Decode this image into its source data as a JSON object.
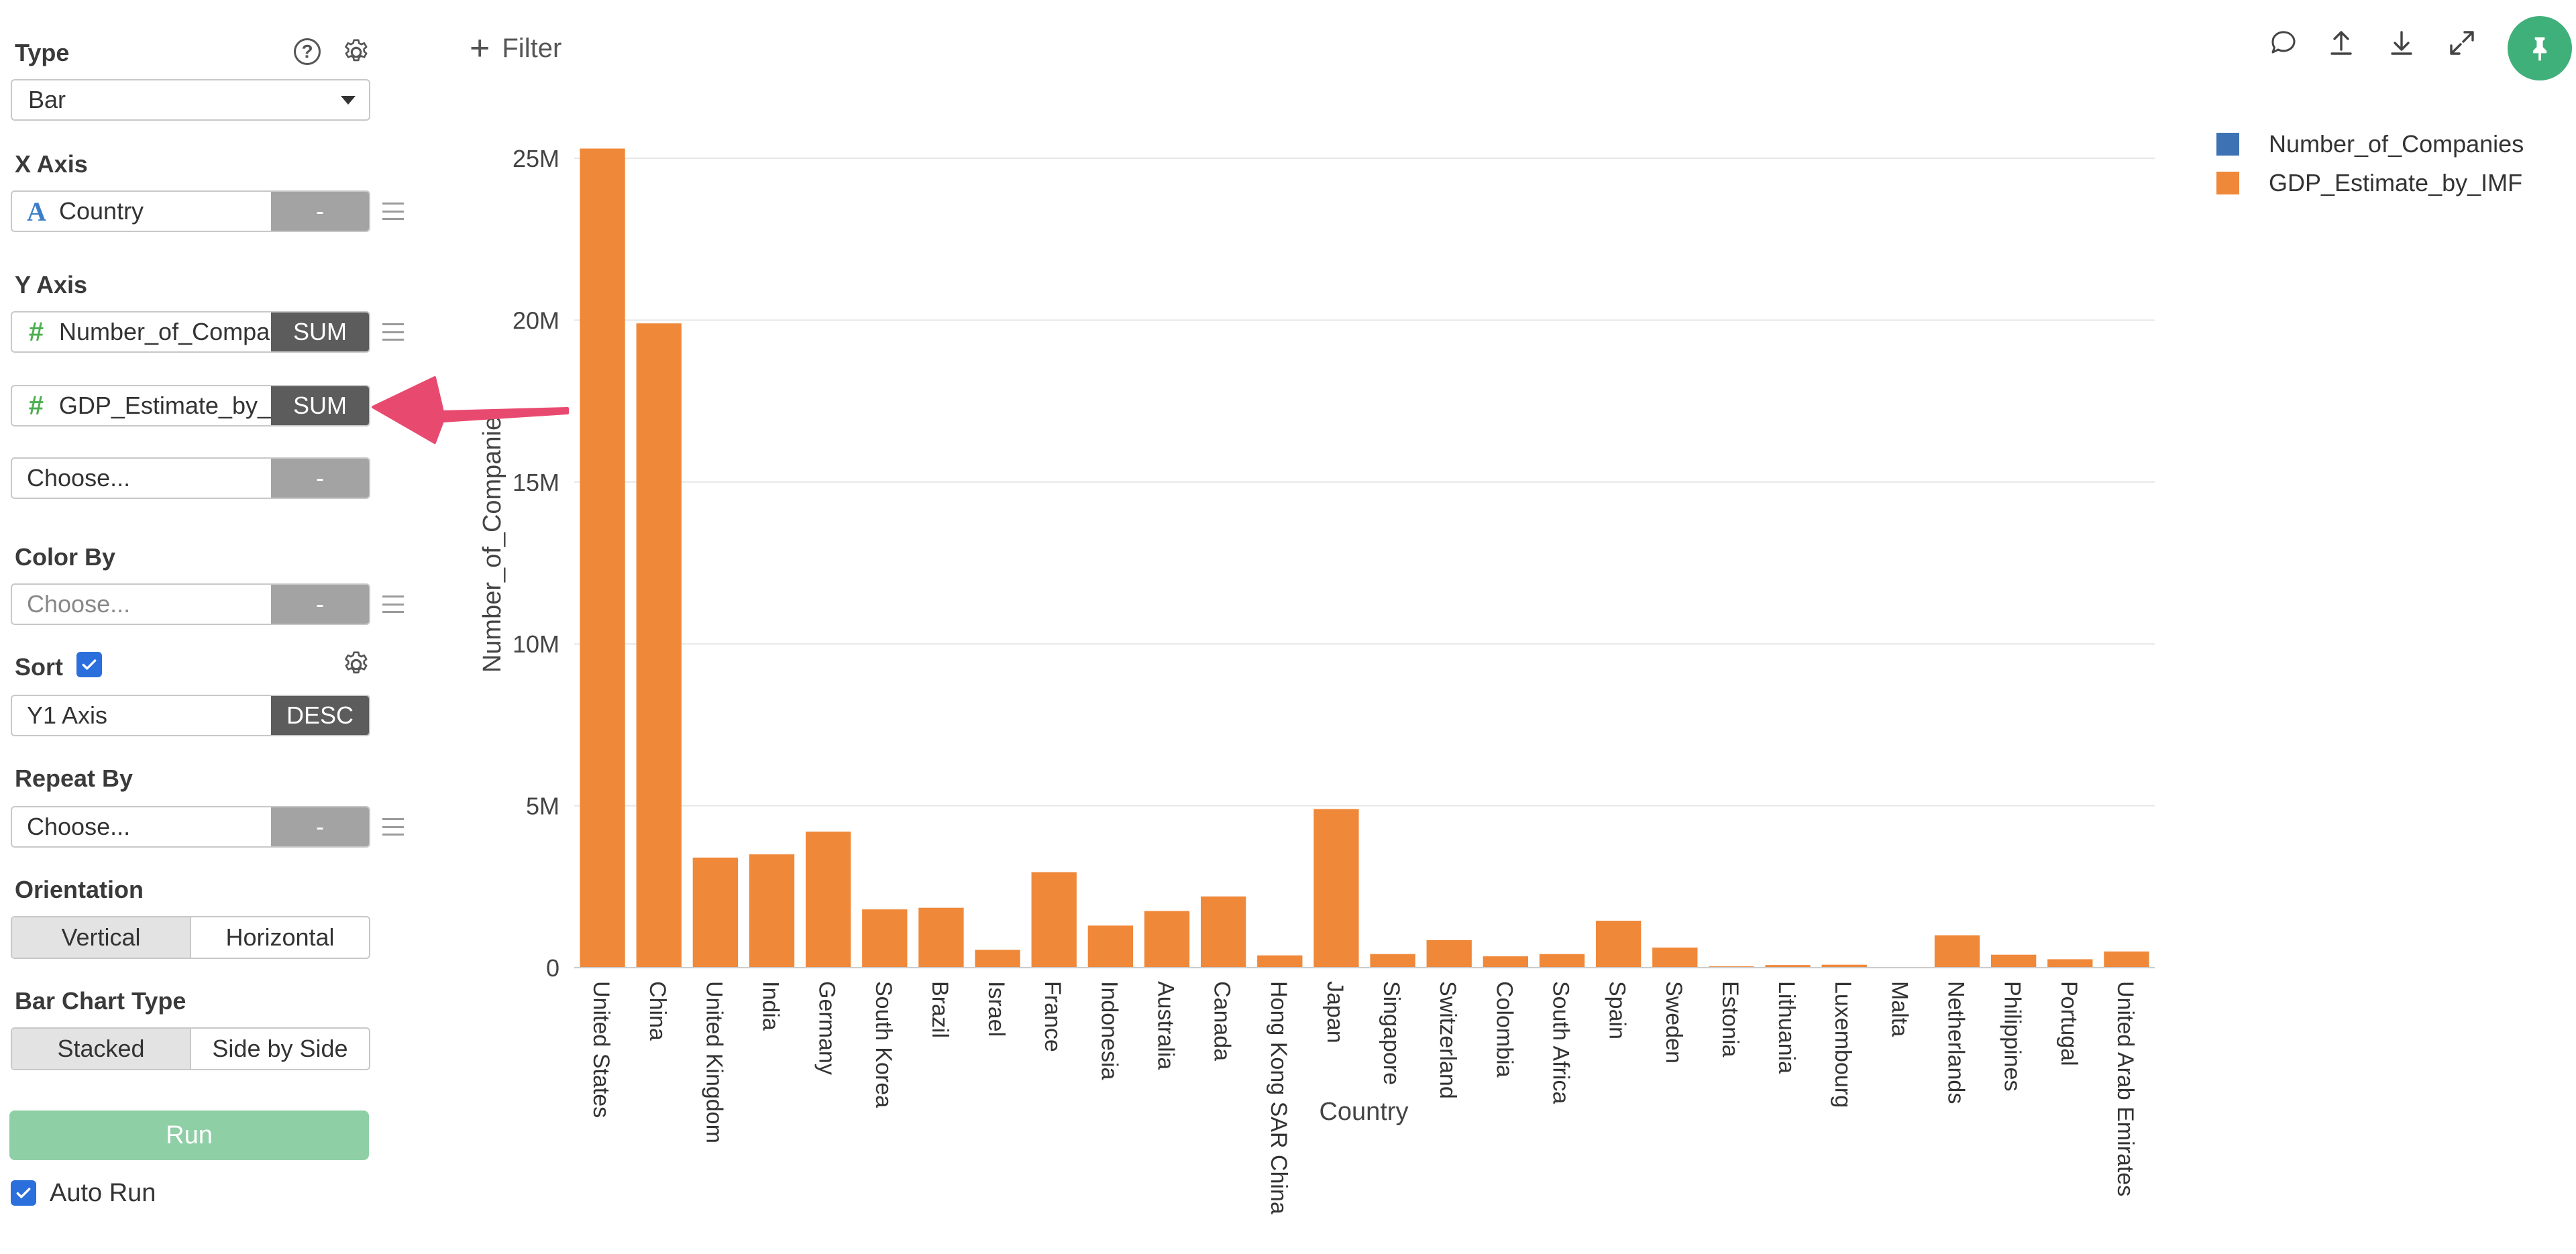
{
  "sidebar": {
    "type": {
      "label": "Type",
      "value": "Bar"
    },
    "x_axis": {
      "label": "X Axis",
      "field": "Country",
      "agg": "-"
    },
    "y_axis": {
      "label": "Y Axis",
      "fields": [
        {
          "name": "Number_of_Compa",
          "agg": "SUM"
        },
        {
          "name": "GDP_Estimate_by_",
          "agg": "SUM"
        }
      ],
      "choose_placeholder": "Choose...",
      "choose_agg": "-"
    },
    "color_by": {
      "label": "Color By",
      "placeholder": "Choose...",
      "agg": "-"
    },
    "sort": {
      "label": "Sort",
      "field": "Y1 Axis",
      "order": "DESC"
    },
    "repeat_by": {
      "label": "Repeat By",
      "placeholder": "Choose...",
      "agg": "-"
    },
    "orientation": {
      "label": "Orientation",
      "options": [
        "Vertical",
        "Horizontal"
      ],
      "selected": "Vertical"
    },
    "bar_chart_type": {
      "label": "Bar Chart Type",
      "options": [
        "Stacked",
        "Side by Side"
      ],
      "selected": "Stacked"
    },
    "run_label": "Run",
    "auto_run_label": "Auto Run"
  },
  "toolbar": {
    "filter_label": "Filter"
  },
  "icons": [
    "help-icon",
    "gear-icon",
    "comment-icon",
    "upload-icon",
    "download-icon",
    "expand-icon",
    "pin-icon"
  ],
  "colors": {
    "series1": "#3d72b4",
    "series2": "#f0883a",
    "accent_green": "#3fb07a",
    "run_button": "#8fcfa6",
    "annotation_arrow": "#e84a6f",
    "checkbox": "#2a6fdb"
  },
  "chart_data": {
    "type": "bar",
    "xlabel": "Country",
    "ylabel": "Number_of_Companie",
    "ylim": [
      0,
      25000000
    ],
    "yticks": [
      {
        "value": 0,
        "label": "0"
      },
      {
        "value": 5000000,
        "label": "5M"
      },
      {
        "value": 10000000,
        "label": "10M"
      },
      {
        "value": 15000000,
        "label": "15M"
      },
      {
        "value": 20000000,
        "label": "20M"
      },
      {
        "value": 25000000,
        "label": "25M"
      }
    ],
    "grid": true,
    "legend_position": "top-right",
    "categories": [
      "United States",
      "China",
      "United Kingdom",
      "India",
      "Germany",
      "South Korea",
      "Brazil",
      "Israel",
      "France",
      "Indonesia",
      "Australia",
      "Canada",
      "Hong Kong SAR China",
      "Japan",
      "Singapore",
      "Switzerland",
      "Colombia",
      "South Africa",
      "Spain",
      "Sweden",
      "Estonia",
      "Lithuania",
      "Luxembourg",
      "Malta",
      "Netherlands",
      "Philippines",
      "Portugal",
      "United Arab Emirates"
    ],
    "series": [
      {
        "name": "Number_of_Companies",
        "values": [
          8,
          2,
          5,
          2,
          3,
          1,
          1,
          3,
          2,
          1,
          1,
          1,
          1,
          1,
          2,
          1,
          1,
          1,
          1,
          1,
          1,
          1,
          1,
          1,
          1,
          1,
          1,
          1
        ]
      },
      {
        "name": "GDP_Estimate_by_IMF",
        "values": [
          25300000,
          19900000,
          3400000,
          3500000,
          4200000,
          1800000,
          1850000,
          550000,
          2950000,
          1300000,
          1750000,
          2200000,
          380000,
          4900000,
          420000,
          850000,
          350000,
          420000,
          1450000,
          620000,
          40000,
          80000,
          90000,
          20000,
          1000000,
          400000,
          260000,
          500000
        ]
      }
    ]
  }
}
